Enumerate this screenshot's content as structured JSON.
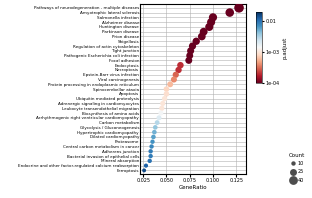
{
  "chart_data": {
    "type": "scatter",
    "categories": [
      "Pathways of neurodegeneration - multiple diseases",
      "Amyotrophic lateral sclerosis",
      "Salmonella infection",
      "Alzheimer disease",
      "Huntington disease",
      "Parkinson disease",
      "Prion disease",
      "Shigellosis",
      "Regulation of actin cytoskeleton",
      "Tight junction",
      "Pathogenic Escherichia coli infection",
      "Focal adhesion",
      "Endocytosis",
      "Necroptosis",
      "Epstein-Barr virus infection",
      "Viral carcinogenesis",
      "Protein processing in endoplasmic reticulum",
      "Spinocerebellar ataxia",
      "Apoptosis",
      "Ubiquitin mediated proteolysis",
      "Adrenergic signaling in cardiomyocytes",
      "Leukocyte transendothelial migration",
      "Biosynthesis of amino acids",
      "Arrhythmogenic right ventricular cardiomyopathy",
      "Carbon metabolism",
      "Glycolysis / Gluconeogenesis",
      "Hypertrophic cardiomyopathy",
      "Dilated cardiomyopathy",
      "Proteasome",
      "Central carbon metabolism in cancer",
      "Adherens junction",
      "Bacterial invasion of epithelial cells",
      "Mineral absorption",
      "Endocrine and other factor-regulated calcium reabsorption",
      "Ferroptosis"
    ],
    "values": [
      0.128,
      0.118,
      0.1,
      0.098,
      0.096,
      0.09,
      0.088,
      0.082,
      0.078,
      0.076,
      0.075,
      0.074,
      0.065,
      0.063,
      0.06,
      0.058,
      0.054,
      0.05,
      0.05,
      0.048,
      0.046,
      0.045,
      0.044,
      0.042,
      0.04,
      0.038,
      0.037,
      0.036,
      0.035,
      0.034,
      0.033,
      0.033,
      0.032,
      0.028,
      0.026
    ],
    "sizes": [
      48,
      38,
      35,
      34,
      34,
      32,
      31,
      28,
      27,
      26,
      25,
      25,
      22,
      21,
      20,
      19,
      18,
      16,
      16,
      15,
      14,
      14,
      13,
      13,
      12,
      11,
      11,
      11,
      10,
      10,
      10,
      10,
      10,
      9,
      8
    ],
    "size_label": "Count",
    "size_legend": [
      10,
      25,
      40
    ],
    "color_values": [
      0.0001,
      0.0001,
      0.0001,
      0.0001,
      0.0001,
      0.0001,
      0.0001,
      0.0001,
      0.0001,
      0.0001,
      0.0001,
      0.0001,
      0.0002,
      0.0002,
      0.0003,
      0.0004,
      0.0006,
      0.0008,
      0.0009,
      0.001,
      0.001,
      0.001,
      0.0015,
      0.002,
      0.003,
      0.004,
      0.005,
      0.006,
      0.007,
      0.008,
      0.009,
      0.009,
      0.01,
      0.012,
      0.015
    ],
    "colorbar_label": "p.adjust",
    "colorbar_lim": [
      0.0001,
      0.02
    ],
    "colorbar_ticks": [
      {
        "value": 0.0001,
        "label": "1e-04"
      },
      {
        "value": 0.001,
        "label": "1e-03"
      },
      0.01
    ],
    "xlabel": "GeneRatio",
    "xlim": [
      0.022,
      0.136
    ],
    "xticks": [
      0.025,
      {
        "value": 0.05,
        "label": "0.050"
      },
      0.075,
      {
        "value": 0.1,
        "label": "0.100"
      },
      0.125
    ],
    "grid": true
  }
}
